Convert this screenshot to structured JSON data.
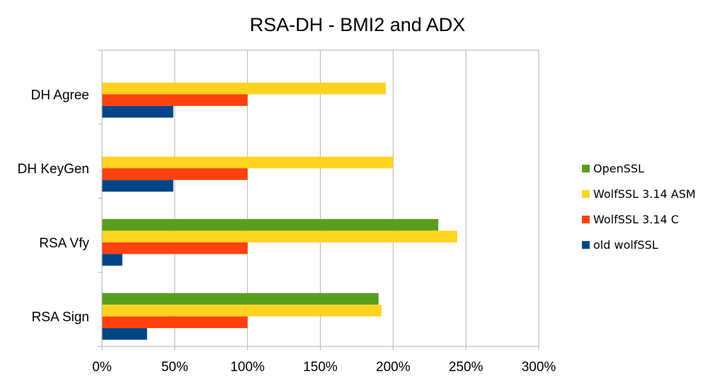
{
  "chart_data": {
    "type": "bar",
    "orientation": "horizontal",
    "title": "RSA-DH - BMI2 and ADX",
    "categories": [
      "DH Agree",
      "DH KeyGen",
      "RSA Vfy",
      "RSA Sign"
    ],
    "series": [
      {
        "name": "OpenSSL",
        "color": "#5A9E1E",
        "values": [
          null,
          null,
          231,
          190
        ]
      },
      {
        "name": "WolfSSL 3.14 ASM",
        "color": "#FFD320",
        "values": [
          195,
          200,
          244,
          192
        ]
      },
      {
        "name": "WolfSSL 3.14 C",
        "color": "#FF420E",
        "values": [
          100,
          100,
          100,
          100
        ]
      },
      {
        "name": "old wolfSSL",
        "color": "#004586",
        "values": [
          49,
          49,
          14,
          31
        ]
      }
    ],
    "x_ticks": [
      "0%",
      "50%",
      "100%",
      "150%",
      "200%",
      "250%",
      "300%"
    ],
    "xlim": [
      0,
      300
    ],
    "legend_position": "right",
    "grid": true
  }
}
